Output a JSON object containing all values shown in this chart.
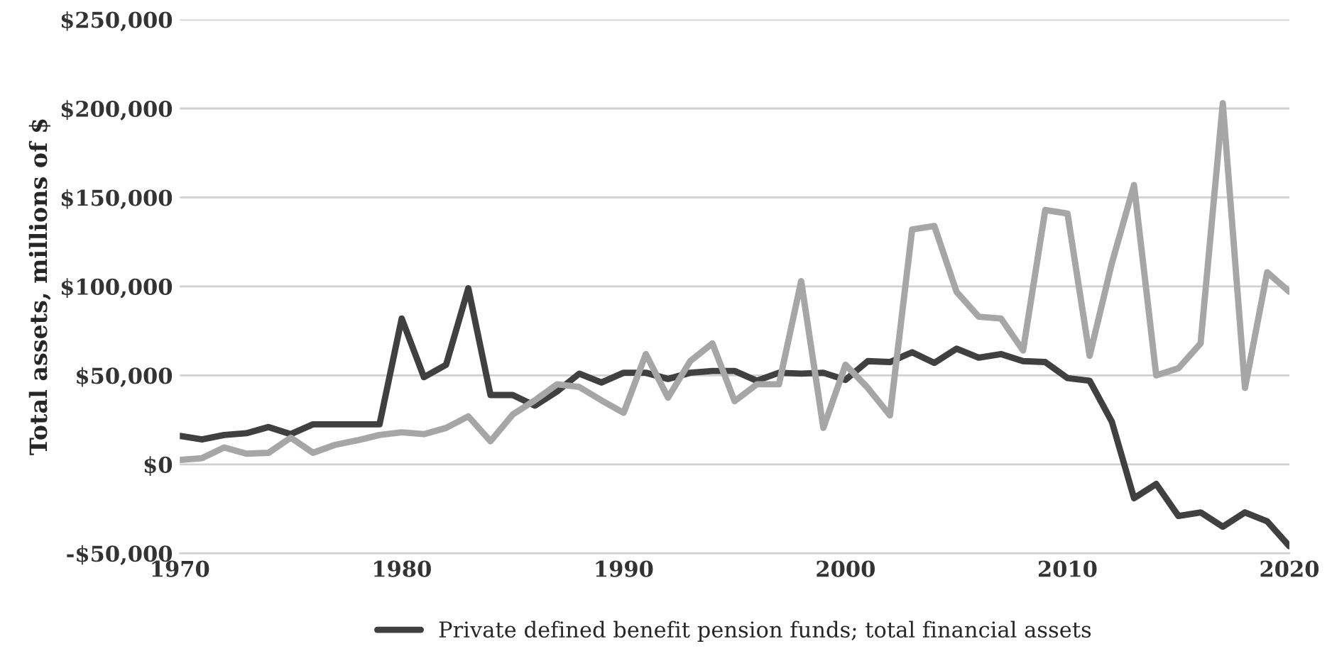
{
  "chart_data": {
    "type": "line",
    "ylabel": "Total assets, millions of $",
    "x": [
      1970,
      1971,
      1972,
      1973,
      1974,
      1975,
      1976,
      1977,
      1978,
      1979,
      1980,
      1981,
      1982,
      1983,
      1984,
      1985,
      1986,
      1987,
      1988,
      1989,
      1990,
      1991,
      1992,
      1993,
      1994,
      1995,
      1996,
      1997,
      1998,
      1999,
      2000,
      2001,
      2002,
      2003,
      2004,
      2005,
      2006,
      2007,
      2008,
      2009,
      2010,
      2011,
      2012,
      2013,
      2014,
      2015,
      2016,
      2017,
      2018,
      2019,
      2020
    ],
    "series": [
      {
        "name": "Private defined benefit pension funds; total financial assets",
        "color": "#404040",
        "values": [
          16000,
          14000,
          16500,
          17500,
          21000,
          17000,
          22500,
          22500,
          22500,
          22500,
          82000,
          49000,
          56000,
          99000,
          39000,
          39000,
          33000,
          41000,
          51000,
          46000,
          51500,
          51500,
          48000,
          51500,
          52500,
          52500,
          47000,
          51500,
          51000,
          51500,
          47500,
          58000,
          57500,
          63000,
          57000,
          65000,
          60000,
          62000,
          58000,
          57500,
          48500,
          47000,
          24000,
          -19000,
          -11000,
          -29000,
          -27000,
          -35000,
          -27000,
          -32000,
          -46000
        ]
      },
      {
        "color": "#a6a6a6",
        "values": [
          2500,
          3500,
          9500,
          6000,
          6500,
          15000,
          6500,
          11000,
          13500,
          16500,
          18000,
          17000,
          20500,
          27000,
          13000,
          28000,
          36000,
          45000,
          43500,
          36000,
          29000,
          62000,
          37500,
          58000,
          68000,
          35500,
          45000,
          45000,
          103000,
          20500,
          56000,
          43000,
          27500,
          132000,
          134000,
          97000,
          83000,
          82000,
          64000,
          143000,
          141000,
          61000,
          113000,
          157000,
          50000,
          54000,
          68000,
          203000,
          43000,
          108000,
          97000
        ]
      }
    ],
    "xlim": [
      1970,
      2020
    ],
    "xticks": [
      1970,
      1980,
      1990,
      2000,
      2010,
      2020
    ],
    "ylim": [
      -50000,
      250000
    ],
    "yticks": [
      {
        "value": -50000,
        "label": "-$50,000"
      },
      {
        "value": 0,
        "label": "$0"
      },
      {
        "value": 50000,
        "label": "$50,000"
      },
      {
        "value": 100000,
        "label": "$100,000"
      },
      {
        "value": 150000,
        "label": "$150,000"
      },
      {
        "value": 200000,
        "label": "$200,000"
      },
      {
        "value": 250000,
        "label": "$250,000"
      }
    ],
    "grid": "y",
    "legend": "bottom",
    "marker": "none",
    "line_style": "solid"
  }
}
